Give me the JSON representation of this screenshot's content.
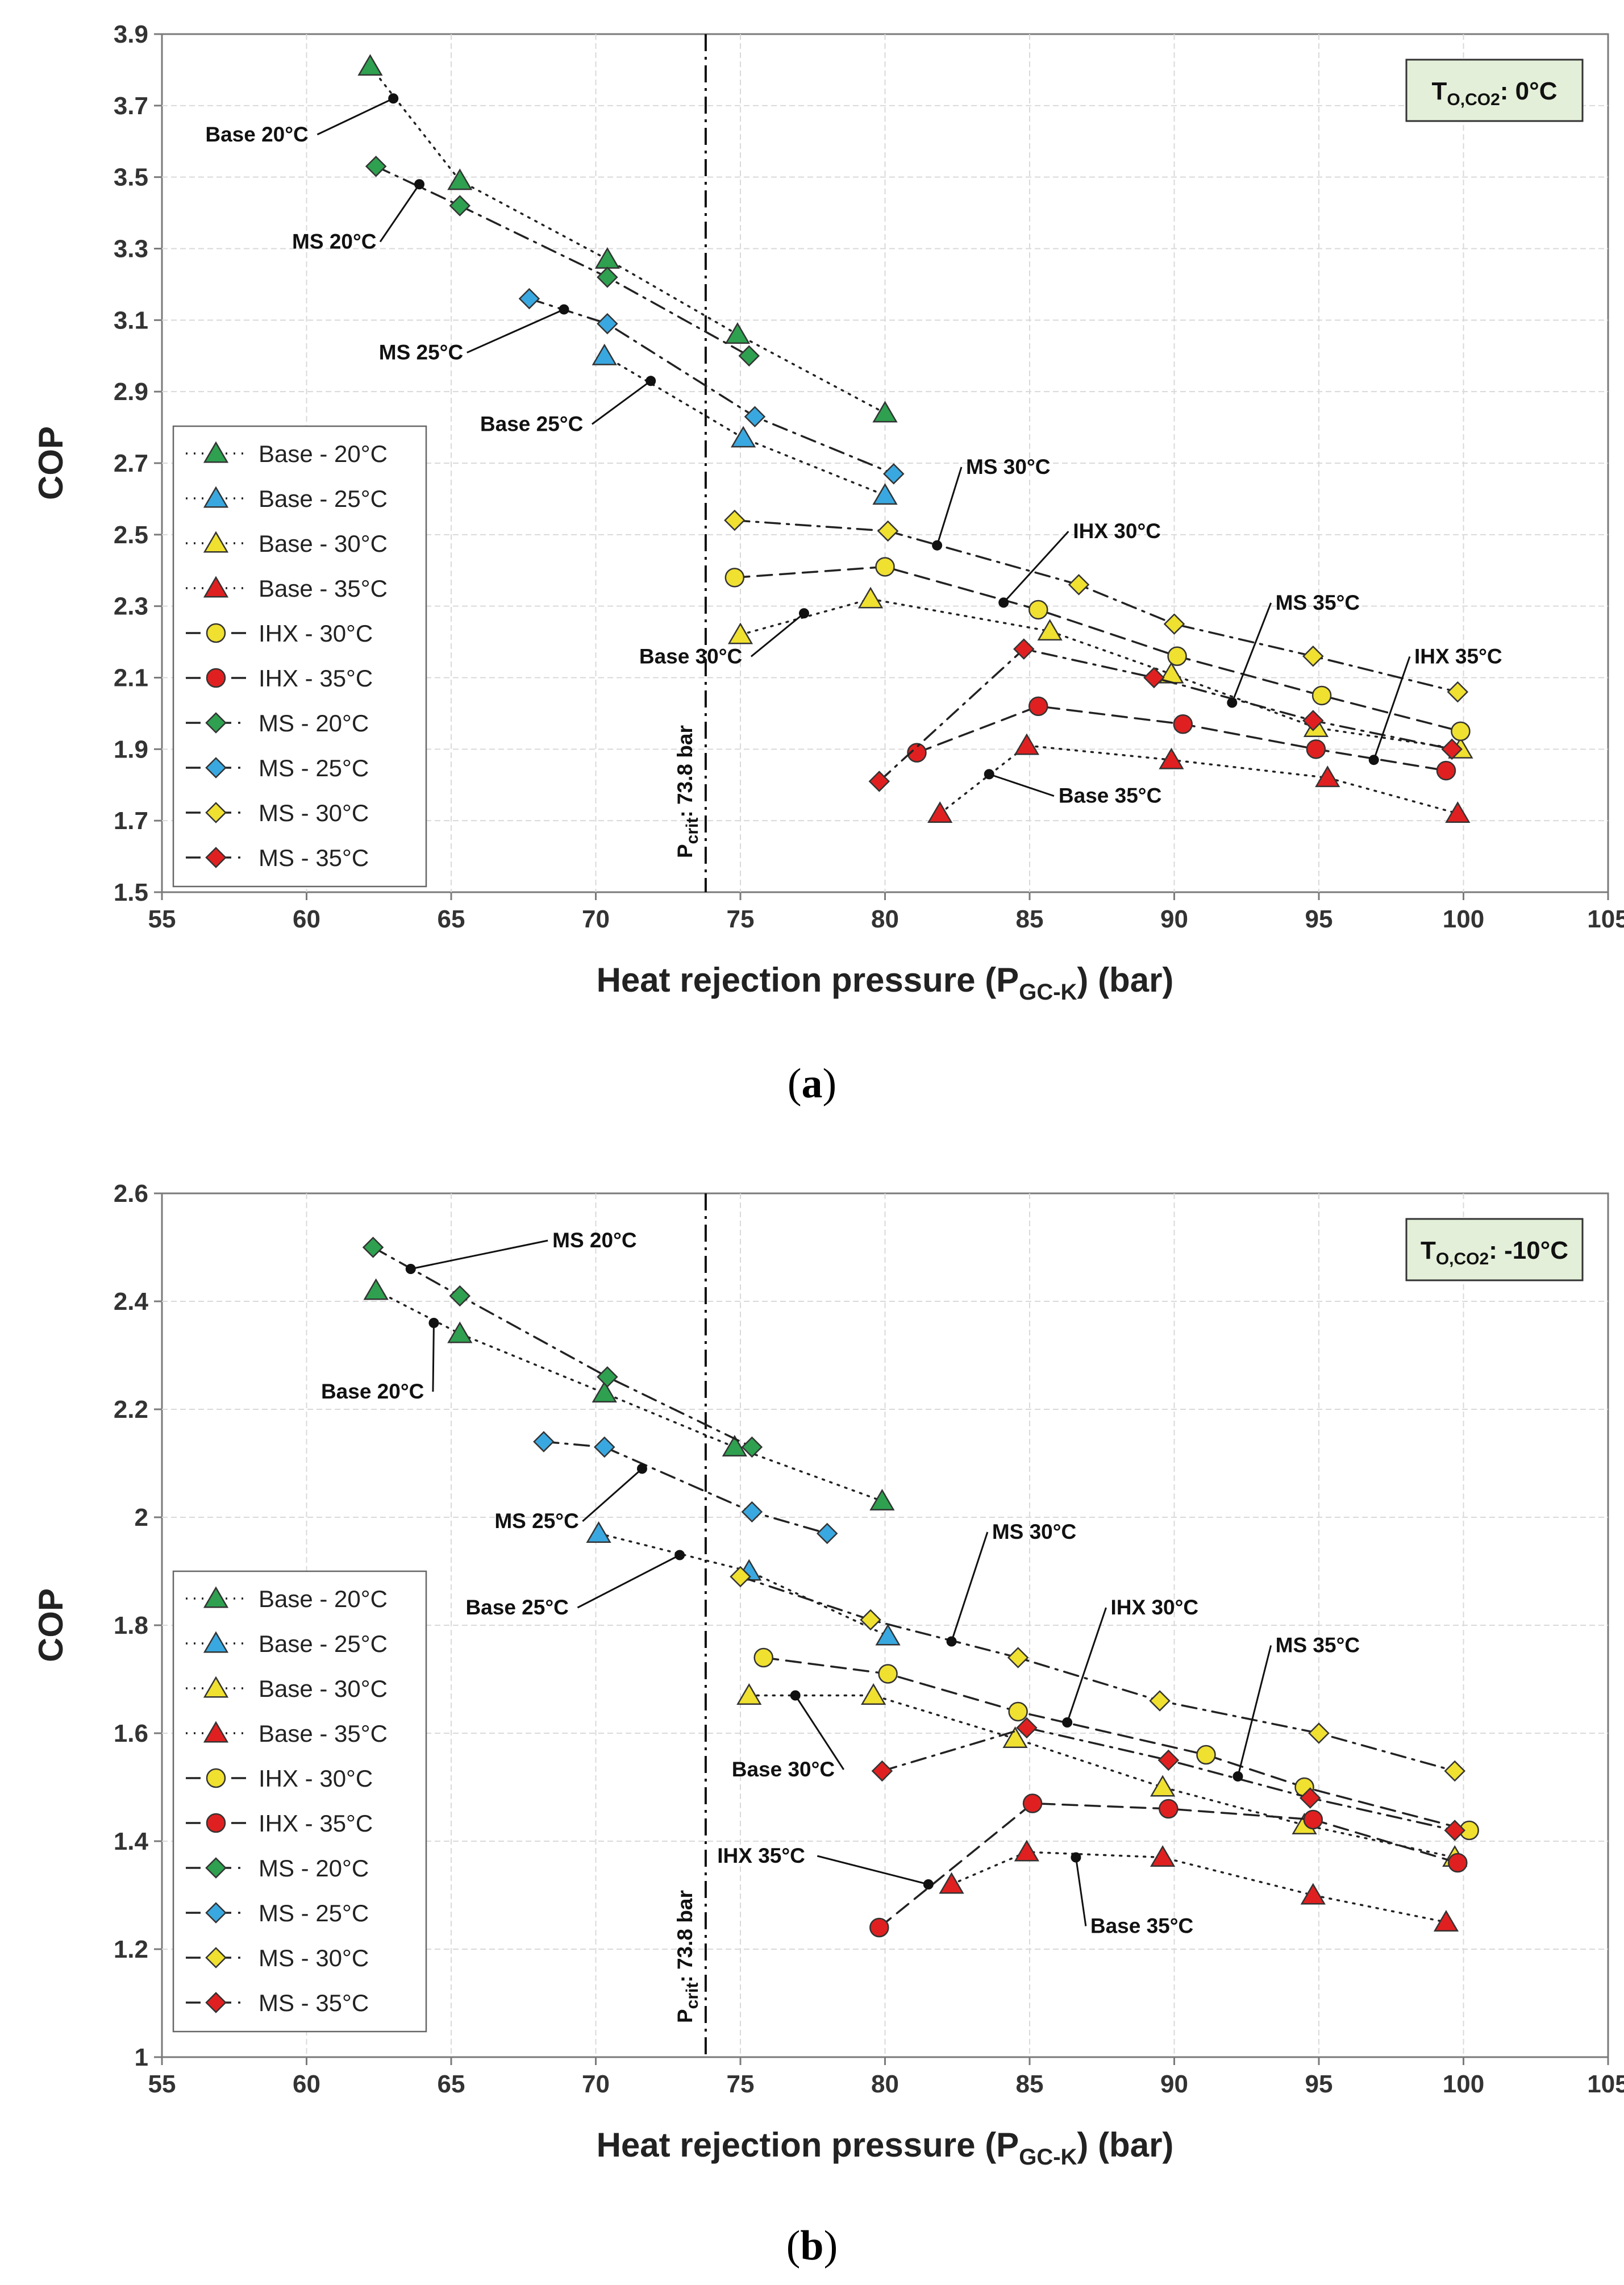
{
  "chart_data": [
    {
      "panel": "(a)",
      "type": "line",
      "xlabel": "Heat rejection pressure (P",
      "xlabel_sub": "GC-K",
      "xlabel_tail": ") (bar)",
      "ylabel": "COP",
      "xlim": [
        55,
        105
      ],
      "ylim": [
        1.5,
        3.9
      ],
      "x_ticks": [
        "55",
        "60",
        "65",
        "70",
        "75",
        "80",
        "85",
        "90",
        "95",
        "100",
        "105"
      ],
      "y_ticks": [
        "1.5",
        "1.7",
        "1.9",
        "2.1",
        "2.3",
        "2.5",
        "2.7",
        "2.9",
        "3.1",
        "3.3",
        "3.5",
        "3.7",
        "3.9"
      ],
      "grid": true,
      "legend_position": "bottom-left",
      "condition_box": {
        "prefix": "T",
        "sub": "O,CO2",
        "value": ": 0°C"
      },
      "pcrit": {
        "x": 73.8,
        "label_main": "P",
        "label_sub": "crit",
        "label_tail": ": 73.8 bar"
      },
      "series": [
        {
          "name": "Base - 20°C",
          "marker": "triangle",
          "color": "#2EA04F",
          "dash": "dotted",
          "x": [
            62.2,
            65.3,
            70.4,
            74.9,
            80.0
          ],
          "y": [
            3.81,
            3.49,
            3.27,
            3.06,
            2.84
          ]
        },
        {
          "name": "Base - 25°C",
          "marker": "triangle",
          "color": "#3AA8E0",
          "dash": "dotted",
          "x": [
            70.3,
            75.1,
            80.0
          ],
          "y": [
            3.0,
            2.77,
            2.61
          ]
        },
        {
          "name": "Base - 30°C",
          "marker": "triangle",
          "color": "#F0E030",
          "dash": "dotted",
          "x": [
            75.0,
            79.5,
            85.7,
            89.9,
            94.9,
            99.9
          ],
          "y": [
            2.22,
            2.32,
            2.23,
            2.11,
            1.96,
            1.9
          ]
        },
        {
          "name": "Base - 35°C",
          "marker": "triangle",
          "color": "#E02020",
          "dash": "dotted",
          "x": [
            81.9,
            84.9,
            89.9,
            95.3,
            99.8
          ],
          "y": [
            1.72,
            1.91,
            1.87,
            1.82,
            1.72
          ]
        },
        {
          "name": "IHX - 30°C",
          "marker": "circle",
          "color": "#F0E030",
          "dash": "dashed",
          "x": [
            74.8,
            80.0,
            85.3,
            90.1,
            95.1,
            99.9
          ],
          "y": [
            2.38,
            2.41,
            2.29,
            2.16,
            2.05,
            1.95
          ]
        },
        {
          "name": "IHX - 35°C",
          "marker": "circle",
          "color": "#E02020",
          "dash": "dashed",
          "x": [
            81.1,
            85.3,
            90.3,
            94.9,
            99.4
          ],
          "y": [
            1.89,
            2.02,
            1.97,
            1.9,
            1.84
          ]
        },
        {
          "name": "MS - 20°C",
          "marker": "diamond",
          "color": "#2EA04F",
          "dash": "dashdot",
          "x": [
            62.4,
            65.3,
            70.4,
            75.3
          ],
          "y": [
            3.53,
            3.42,
            3.22,
            3.0
          ]
        },
        {
          "name": "MS - 25°C",
          "marker": "diamond",
          "color": "#3AA8E0",
          "dash": "dashdot",
          "x": [
            67.7,
            70.4,
            75.5,
            80.3
          ],
          "y": [
            3.16,
            3.09,
            2.83,
            2.67
          ]
        },
        {
          "name": "MS - 30°C",
          "marker": "diamond",
          "color": "#F0E030",
          "dash": "dashdot",
          "x": [
            74.8,
            80.1,
            86.7,
            90.0,
            94.8,
            99.8
          ],
          "y": [
            2.54,
            2.51,
            2.36,
            2.25,
            2.16,
            2.06
          ]
        },
        {
          "name": "MS - 35°C",
          "marker": "diamond",
          "color": "#E02020",
          "dash": "dashdot",
          "x": [
            79.8,
            84.8,
            89.3,
            94.8,
            99.6
          ],
          "y": [
            1.81,
            2.18,
            2.1,
            1.98,
            1.9
          ]
        }
      ],
      "annotations": [
        {
          "text": "Base 20°C",
          "x": 63.0,
          "y": 3.72,
          "tx": 56.5,
          "ty": 3.6
        },
        {
          "text": "MS 20°C",
          "x": 63.9,
          "y": 3.48,
          "tx": 59.5,
          "ty": 3.3
        },
        {
          "text": "MS 25°C",
          "x": 68.9,
          "y": 3.13,
          "tx": 62.5,
          "ty": 2.99
        },
        {
          "text": "Base 25°C",
          "x": 71.9,
          "y": 2.93,
          "tx": 66.0,
          "ty": 2.79
        },
        {
          "text": "MS 30°C",
          "x": 81.8,
          "y": 2.47,
          "tx": 82.8,
          "ty": 2.67
        },
        {
          "text": "IHX 30°C",
          "x": 84.1,
          "y": 2.31,
          "tx": 86.5,
          "ty": 2.49
        },
        {
          "text": "Base 30°C",
          "x": 77.2,
          "y": 2.28,
          "tx": 71.5,
          "ty": 2.14
        },
        {
          "text": "MS 35°C",
          "x": 92.0,
          "y": 2.03,
          "tx": 93.5,
          "ty": 2.29
        },
        {
          "text": "IHX 35°C",
          "x": 96.9,
          "y": 1.87,
          "tx": 98.3,
          "ty": 2.14
        },
        {
          "text": "Base 35°C",
          "x": 83.6,
          "y": 1.83,
          "tx": 86.0,
          "ty": 1.75
        }
      ]
    },
    {
      "panel": "(b)",
      "type": "line",
      "xlabel": "Heat rejection pressure (P",
      "xlabel_sub": "GC-K",
      "xlabel_tail": ") (bar)",
      "ylabel": "COP",
      "xlim": [
        55,
        105
      ],
      "ylim": [
        1.0,
        2.6
      ],
      "x_ticks": [
        "55",
        "60",
        "65",
        "70",
        "75",
        "80",
        "85",
        "90",
        "95",
        "100",
        "105"
      ],
      "y_ticks": [
        "1",
        "1.2",
        "1.4",
        "1.6",
        "1.8",
        "2",
        "2.2",
        "2.4",
        "2.6"
      ],
      "grid": true,
      "legend_position": "bottom-left",
      "condition_box": {
        "prefix": "T",
        "sub": "O,CO2",
        "value": ": -10°C"
      },
      "pcrit": {
        "x": 73.8,
        "label_main": "P",
        "label_sub": "crit",
        "label_tail": ": 73.8 bar"
      },
      "series": [
        {
          "name": "Base - 20°C",
          "marker": "triangle",
          "color": "#2EA04F",
          "dash": "dotted",
          "x": [
            62.4,
            65.3,
            70.3,
            74.8,
            79.9
          ],
          "y": [
            2.42,
            2.34,
            2.23,
            2.13,
            2.03
          ]
        },
        {
          "name": "Base - 25°C",
          "marker": "triangle",
          "color": "#3AA8E0",
          "dash": "dotted",
          "x": [
            70.1,
            75.3,
            80.1
          ],
          "y": [
            1.97,
            1.9,
            1.78
          ]
        },
        {
          "name": "Base - 30°C",
          "marker": "triangle",
          "color": "#F0E030",
          "dash": "dotted",
          "x": [
            75.3,
            79.6,
            84.5,
            89.6,
            94.5,
            99.7
          ],
          "y": [
            1.67,
            1.67,
            1.59,
            1.5,
            1.43,
            1.37
          ]
        },
        {
          "name": "Base - 35°C",
          "marker": "triangle",
          "color": "#E02020",
          "dash": "dotted",
          "x": [
            82.3,
            84.9,
            89.6,
            94.8,
            99.4
          ],
          "y": [
            1.32,
            1.38,
            1.37,
            1.3,
            1.25
          ]
        },
        {
          "name": "IHX - 30°C",
          "marker": "circle",
          "color": "#F0E030",
          "dash": "dashed",
          "x": [
            75.8,
            80.1,
            84.6,
            91.1,
            94.5,
            100.2
          ],
          "y": [
            1.74,
            1.71,
            1.64,
            1.56,
            1.5,
            1.42
          ]
        },
        {
          "name": "IHX - 35°C",
          "marker": "circle",
          "color": "#E02020",
          "dash": "dashed",
          "x": [
            79.8,
            85.1,
            89.8,
            94.8,
            99.8
          ],
          "y": [
            1.24,
            1.47,
            1.46,
            1.44,
            1.36
          ]
        },
        {
          "name": "MS - 20°C",
          "marker": "diamond",
          "color": "#2EA04F",
          "dash": "dashdot",
          "x": [
            62.3,
            65.3,
            70.4,
            75.4
          ],
          "y": [
            2.5,
            2.41,
            2.26,
            2.13
          ]
        },
        {
          "name": "MS - 25°C",
          "marker": "diamond",
          "color": "#3AA8E0",
          "dash": "dashdot",
          "x": [
            68.2,
            70.3,
            75.4,
            78.0
          ],
          "y": [
            2.14,
            2.13,
            2.01,
            1.97
          ]
        },
        {
          "name": "MS - 30°C",
          "marker": "diamond",
          "color": "#F0E030",
          "dash": "dashdot",
          "x": [
            75.0,
            79.5,
            84.6,
            89.5,
            95.0,
            99.7
          ],
          "y": [
            1.89,
            1.81,
            1.74,
            1.66,
            1.6,
            1.53
          ]
        },
        {
          "name": "MS - 35°C",
          "marker": "diamond",
          "color": "#E02020",
          "dash": "dashdot",
          "x": [
            79.9,
            84.9,
            89.8,
            94.7,
            99.7
          ],
          "y": [
            1.53,
            1.61,
            1.55,
            1.48,
            1.42
          ]
        }
      ],
      "annotations": [
        {
          "text": "MS 20°C",
          "x": 63.6,
          "y": 2.46,
          "tx": 68.5,
          "ty": 2.5
        },
        {
          "text": "Base 20°C",
          "x": 64.4,
          "y": 2.36,
          "tx": 60.5,
          "ty": 2.22
        },
        {
          "text": "MS 25°C",
          "x": 71.6,
          "y": 2.09,
          "tx": 66.5,
          "ty": 1.98
        },
        {
          "text": "Base 25°C",
          "x": 72.9,
          "y": 1.93,
          "tx": 65.5,
          "ty": 1.82
        },
        {
          "text": "MS 30°C",
          "x": 82.3,
          "y": 1.77,
          "tx": 83.7,
          "ty": 1.96
        },
        {
          "text": "IHX 30°C",
          "x": 86.3,
          "y": 1.62,
          "tx": 87.8,
          "ty": 1.82
        },
        {
          "text": "Base 30°C",
          "x": 76.9,
          "y": 1.67,
          "tx": 74.7,
          "ty": 1.52
        },
        {
          "text": "MS 35°C",
          "x": 92.2,
          "y": 1.52,
          "tx": 93.5,
          "ty": 1.75
        },
        {
          "text": "IHX 35°C",
          "x": 81.5,
          "y": 1.32,
          "tx": 74.2,
          "ty": 1.36
        },
        {
          "text": "Base 35°C",
          "x": 86.6,
          "y": 1.37,
          "tx": 87.1,
          "ty": 1.23
        }
      ]
    }
  ],
  "captions": [
    {
      "open": "(",
      "letter": "a",
      "close": ")"
    },
    {
      "open": "(",
      "letter": "b",
      "close": ")"
    }
  ]
}
